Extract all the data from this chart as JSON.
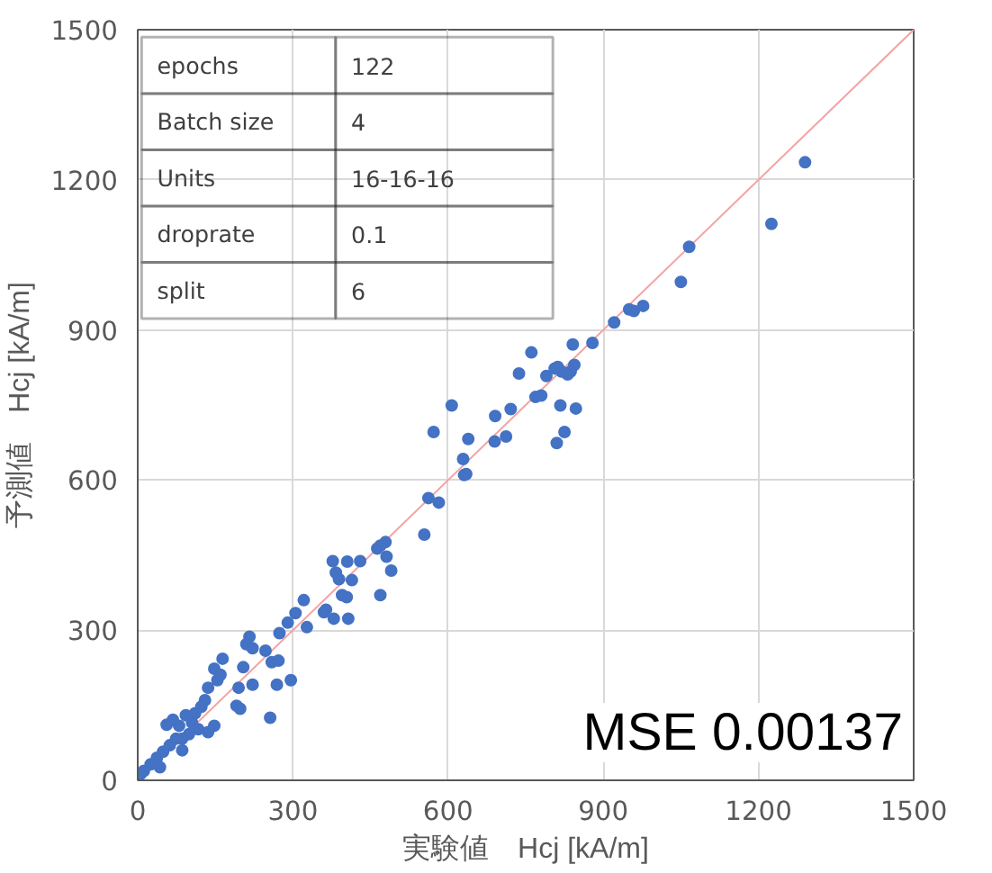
{
  "chart_data": {
    "type": "scatter",
    "xlabel": "実験値　Hcj [kA/m]",
    "ylabel": "予測値　Hcj [kA/m]",
    "xlim": [
      0,
      1500
    ],
    "ylim": [
      0,
      1500
    ],
    "xticks": [
      0,
      300,
      600,
      900,
      1200,
      1500
    ],
    "yticks": [
      0,
      300,
      600,
      900,
      1200,
      1500
    ],
    "grid": true,
    "marker": "circle",
    "annotations": [
      "epochs",
      "122",
      "Batch size",
      "4",
      "Units",
      "16-16-16",
      "droprate",
      "0.1",
      "split",
      "6",
      "MSE 0.00137"
    ],
    "series": [
      {
        "type": "line",
        "marker": "none",
        "color": "#f4a3a3",
        "x": [
          0,
          1500
        ],
        "values": [
          0,
          1500
        ]
      },
      {
        "color": "#4472c4",
        "x": [
          1290,
          1225,
          1066,
          1050,
          977,
          959,
          950,
          921,
          879,
          841,
          761,
          844,
          837,
          831,
          819,
          812,
          806,
          790,
          780,
          769,
          737,
          817,
          847,
          721,
          691,
          607,
          572,
          825,
          810,
          712,
          639,
          690,
          629,
          631,
          635,
          562,
          582,
          554,
          479,
          469,
          463,
          481,
          490,
          469,
          377,
          405,
          430,
          383,
          389,
          414,
          395,
          404,
          364,
          360,
          379,
          407,
          321,
          305,
          290,
          327,
          274,
          216,
          210,
          222,
          247,
          259,
          272,
          204,
          269,
          296,
          222,
          164,
          148,
          160,
          154,
          136,
          195,
          191,
          198,
          256,
          130,
          123,
          148,
          117,
          99,
          86,
          56,
          68,
          111,
          93,
          86,
          37,
          25,
          12,
          6,
          49,
          62,
          74,
          136,
          105,
          80,
          43
        ],
        "values": [
          1235,
          1112,
          1066,
          996,
          948,
          938,
          941,
          915,
          874,
          871,
          855,
          830,
          817,
          811,
          817,
          826,
          823,
          808,
          769,
          766,
          813,
          749,
          743,
          742,
          728,
          749,
          696,
          696,
          674,
          687,
          682,
          677,
          642,
          610,
          612,
          564,
          555,
          491,
          476,
          469,
          463,
          447,
          419,
          370,
          438,
          437,
          438,
          415,
          402,
          400,
          370,
          366,
          341,
          336,
          323,
          323,
          360,
          334,
          315,
          306,
          294,
          287,
          272,
          264,
          259,
          236,
          239,
          226,
          191,
          200,
          191,
          243,
          223,
          211,
          200,
          185,
          185,
          149,
          143,
          125,
          160,
          147,
          109,
          102,
          92,
          83,
          111,
          121,
          134,
          130,
          60,
          45,
          32,
          19,
          13,
          57,
          70,
          83,
          96,
          115,
          109,
          26
        ]
      }
    ]
  }
}
